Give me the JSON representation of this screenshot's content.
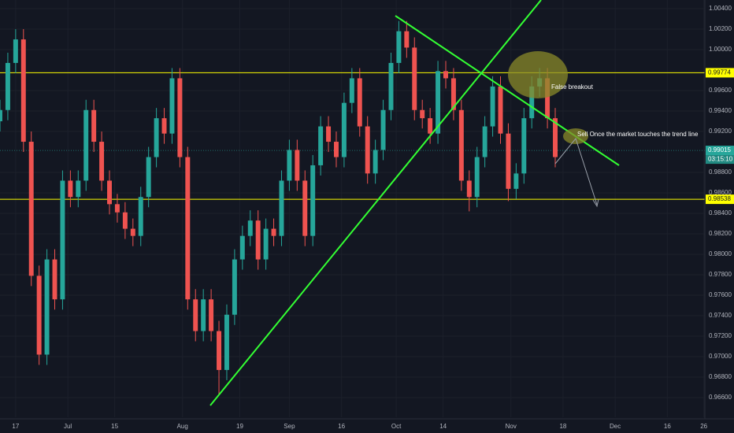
{
  "chart_data": {
    "type": "candlestick",
    "x": [
      -3,
      -1.5,
      0,
      1.5,
      3,
      4.5,
      6,
      7.5,
      9,
      10.5,
      12,
      13.5,
      15,
      16.5,
      18,
      19.5,
      21,
      22.5,
      24,
      25.5,
      27,
      28.5,
      30,
      31.5,
      33,
      34.5,
      36,
      37.5,
      39,
      40.5,
      42,
      43.5,
      45,
      46.5,
      48,
      49.5,
      51,
      52.5,
      54,
      55.5,
      57,
      58.5,
      60,
      61.5,
      63,
      64.5,
      66,
      67.5,
      69,
      70.5,
      72,
      73.5,
      75,
      76.5,
      78,
      79.5,
      81,
      82.5,
      84,
      85.5,
      87,
      88.5,
      90,
      91.5,
      93,
      94.5,
      96,
      97.5,
      99,
      100.5,
      102,
      103.5
    ],
    "open": [
      0.993,
      0.9941,
      0.9987,
      1.001,
      0.991,
      0.9779,
      0.9702,
      0.9795,
      0.9756,
      0.9872,
      0.9856,
      0.9872,
      0.9941,
      0.991,
      0.9872,
      0.9849,
      0.9841,
      0.9825,
      0.9818,
      0.9856,
      0.9895,
      0.9933,
      0.9918,
      0.9972,
      0.9895,
      0.9756,
      0.9725,
      0.9756,
      0.9725,
      0.9687,
      0.9741,
      0.9795,
      0.9818,
      0.9833,
      0.9795,
      0.9825,
      0.9818,
      0.9872,
      0.9902,
      0.9872,
      0.9818,
      0.9887,
      0.9925,
      0.991,
      0.9895,
      0.9948,
      0.9972,
      0.9925,
      0.9879,
      0.9902,
      0.9941,
      0.9987,
      1.0018,
      1.0002,
      0.9941,
      0.9933,
      0.9918,
      0.9979,
      0.9972,
      0.9941,
      0.9872,
      0.9856,
      0.9895,
      0.9925,
      0.9964,
      0.9918,
      0.9864,
      0.9879,
      0.9933,
      0.9964,
      0.9972,
      0.9933
    ],
    "high": [
      0.9951,
      0.9997,
      1.002,
      1.002,
      0.992,
      0.9789,
      0.9805,
      0.9805,
      0.9882,
      0.9882,
      0.9882,
      0.9951,
      0.9951,
      0.992,
      0.9882,
      0.9859,
      0.9851,
      0.9835,
      0.9866,
      0.9905,
      0.9943,
      0.9943,
      0.9982,
      0.9982,
      0.9905,
      0.9766,
      0.9766,
      0.9766,
      0.9735,
      0.9751,
      0.9805,
      0.9828,
      0.9843,
      0.9843,
      0.9835,
      0.9835,
      0.9882,
      0.9912,
      0.9912,
      0.9882,
      0.9897,
      0.9935,
      0.9935,
      0.992,
      0.9958,
      0.9982,
      0.9982,
      0.9935,
      0.9912,
      0.9951,
      0.9997,
      1.0028,
      1.0028,
      1.0012,
      0.9951,
      0.9943,
      0.9989,
      0.9989,
      0.9982,
      0.9951,
      0.9882,
      0.9905,
      0.9935,
      0.9974,
      0.9974,
      0.9928,
      0.9889,
      0.9943,
      0.9974,
      0.9982,
      0.9982,
      0.9943
    ],
    "low": [
      0.992,
      0.9931,
      0.9977,
      0.99,
      0.9769,
      0.9692,
      0.9692,
      0.9746,
      0.9746,
      0.9846,
      0.9846,
      0.9862,
      0.99,
      0.9862,
      0.9839,
      0.9831,
      0.9815,
      0.9808,
      0.9808,
      0.9846,
      0.9885,
      0.9908,
      0.9908,
      0.9885,
      0.9746,
      0.9715,
      0.9715,
      0.9715,
      0.9662,
      0.9677,
      0.9731,
      0.9785,
      0.9808,
      0.9785,
      0.9785,
      0.9808,
      0.9808,
      0.9862,
      0.9862,
      0.9808,
      0.9808,
      0.9877,
      0.99,
      0.9885,
      0.9885,
      0.9938,
      0.9915,
      0.9869,
      0.9869,
      0.9892,
      0.9931,
      0.9977,
      0.9992,
      0.9931,
      0.9923,
      0.9908,
      0.9908,
      0.9962,
      0.9931,
      0.9862,
      0.9842,
      0.9846,
      0.9885,
      0.9915,
      0.9908,
      0.9852,
      0.9854,
      0.9869,
      0.9923,
      0.9954,
      0.9923,
      0.9885
    ],
    "close": [
      0.9941,
      0.9987,
      1.001,
      0.991,
      0.9779,
      0.9702,
      0.9795,
      0.9756,
      0.9872,
      0.9856,
      0.9872,
      0.9941,
      0.991,
      0.9872,
      0.9849,
      0.9841,
      0.9825,
      0.9818,
      0.9856,
      0.9895,
      0.9933,
      0.9918,
      0.9972,
      0.9895,
      0.9756,
      0.9725,
      0.9756,
      0.9725,
      0.9687,
      0.9741,
      0.9795,
      0.9818,
      0.9833,
      0.9795,
      0.9825,
      0.9818,
      0.9872,
      0.9902,
      0.9872,
      0.9818,
      0.9887,
      0.9925,
      0.991,
      0.9895,
      0.9948,
      0.9972,
      0.9925,
      0.9879,
      0.9902,
      0.9941,
      0.9987,
      1.0018,
      1.0002,
      0.9941,
      0.9933,
      0.9918,
      0.9979,
      0.9972,
      0.9941,
      0.9872,
      0.9856,
      0.9895,
      0.9925,
      0.9964,
      0.9918,
      0.9864,
      0.9879,
      0.9933,
      0.9964,
      0.9972,
      0.9933,
      0.9895
    ],
    "up_color": "#26a69a",
    "down_color": "#ef5350",
    "xlim": [
      -3,
      132.2
    ],
    "xticks": [
      {
        "value": 0,
        "label": "17"
      },
      {
        "value": 10,
        "label": "Jul"
      },
      {
        "value": 19,
        "label": "15"
      },
      {
        "value": 32,
        "label": "Aug"
      },
      {
        "value": 43,
        "label": "19"
      },
      {
        "value": 52.5,
        "label": "Sep"
      },
      {
        "value": 62.5,
        "label": "16"
      },
      {
        "value": 73,
        "label": "Oct"
      },
      {
        "value": 82,
        "label": "14"
      },
      {
        "value": 95,
        "label": "Nov"
      },
      {
        "value": 105,
        "label": "18"
      },
      {
        "value": 115,
        "label": "Dec"
      },
      {
        "value": 125,
        "label": "16"
      },
      {
        "value": 132,
        "label": "26"
      }
    ],
    "ylim": [
      0.96408,
      1.00485
    ],
    "yticks": [
      {
        "value": 1.004,
        "label": "1.00400"
      },
      {
        "value": 1.002,
        "label": "1.00200"
      },
      {
        "value": 1.0,
        "label": "1.00000"
      },
      {
        "value": 0.996,
        "label": "0.99600"
      },
      {
        "value": 0.994,
        "label": "0.99400"
      },
      {
        "value": 0.992,
        "label": "0.99200"
      },
      {
        "value": 0.988,
        "label": "0.98800"
      },
      {
        "value": 0.986,
        "label": "0.98600"
      },
      {
        "value": 0.984,
        "label": "0.98400"
      },
      {
        "value": 0.982,
        "label": "0.98200"
      },
      {
        "value": 0.98,
        "label": "0.98000"
      },
      {
        "value": 0.978,
        "label": "0.97800"
      },
      {
        "value": 0.976,
        "label": "0.97600"
      },
      {
        "value": 0.974,
        "label": "0.97400"
      },
      {
        "value": 0.972,
        "label": "0.97200"
      },
      {
        "value": 0.97,
        "label": "0.97000"
      },
      {
        "value": 0.968,
        "label": "0.96800"
      },
      {
        "value": 0.966,
        "label": "0.96600"
      }
    ],
    "grid": true,
    "price_lines": [
      {
        "value": 0.99774,
        "color": "#ffff00"
      },
      {
        "value": 0.98538,
        "color": "#ffff00"
      },
      {
        "value": 0.99015,
        "color": "#26a69a",
        "countdown": "03:15:10"
      }
    ],
    "annotations": [
      "False breakout",
      "Sell Once the market touches the trend line"
    ]
  }
}
